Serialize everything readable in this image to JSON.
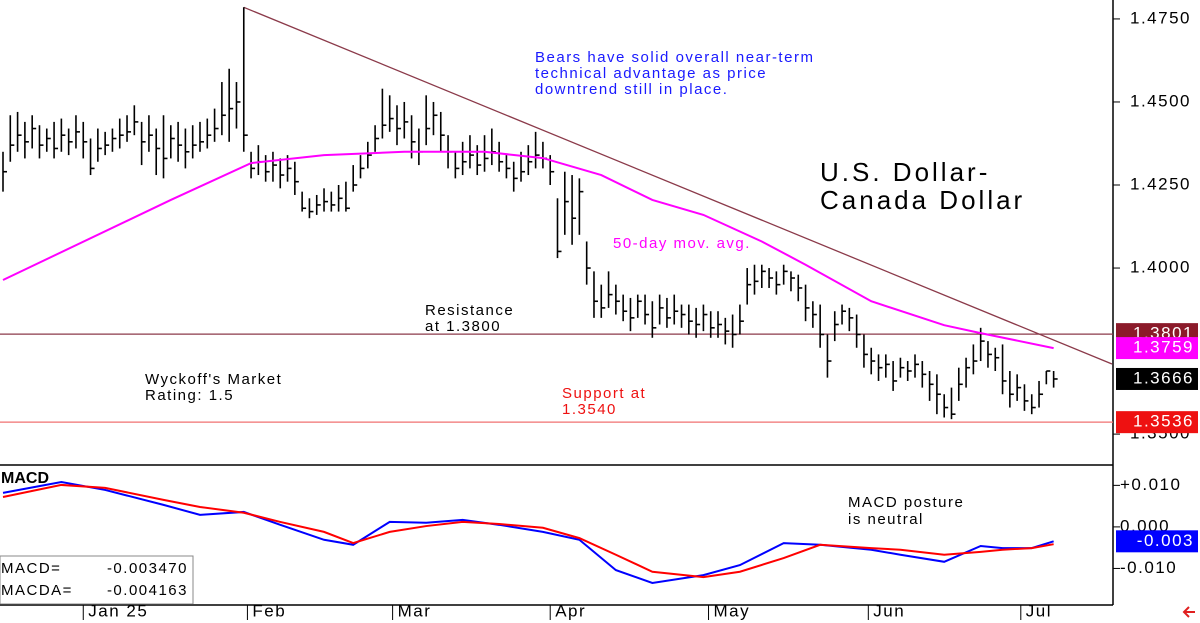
{
  "chart_data": [
    {
      "type": "ohlc",
      "title_lines": [
        "U.S. Dollar-",
        "Canada Dollar"
      ],
      "xlim": [
        0,
        152
      ],
      "ylim": [
        1.3407,
        1.4807
      ],
      "yticks": [
        {
          "value": 1.475,
          "label": "1.4750"
        },
        {
          "value": 1.45,
          "label": "1.4500"
        },
        {
          "value": 1.425,
          "label": "1.4250"
        },
        {
          "value": 1.4,
          "label": "1.4000"
        },
        {
          "value": 1.35,
          "label": "1.3500"
        }
      ],
      "color": "#000000",
      "close": [
        1.429,
        1.437,
        1.44,
        1.438,
        1.442,
        1.437,
        1.439,
        1.436,
        1.44,
        1.438,
        1.441,
        1.438,
        1.43,
        1.436,
        1.437,
        1.439,
        1.44,
        1.441,
        1.444,
        1.438,
        1.44,
        1.436,
        1.433,
        1.439,
        1.437,
        1.435,
        1.437,
        1.438,
        1.44,
        1.442,
        1.446,
        1.448,
        1.45,
        1.44,
        1.43,
        1.432,
        1.429,
        1.431,
        1.428,
        1.43,
        1.426,
        1.418,
        1.417,
        1.419,
        1.42,
        1.419,
        1.421,
        1.418,
        1.425,
        1.43,
        1.434,
        1.439,
        1.443,
        1.445,
        1.442,
        1.444,
        1.438,
        1.435,
        1.442,
        1.446,
        1.44,
        1.435,
        1.43,
        1.432,
        1.434,
        1.431,
        1.433,
        1.435,
        1.432,
        1.43,
        1.427,
        1.429,
        1.432,
        1.434,
        1.433,
        1.429,
        1.405,
        1.42,
        1.415,
        1.423,
        1.4,
        1.39,
        1.388,
        1.392,
        1.39,
        1.387,
        1.385,
        1.39,
        1.386,
        1.382,
        1.388,
        1.385,
        1.387,
        1.386,
        1.384,
        1.383,
        1.386,
        1.382,
        1.383,
        1.381,
        1.38,
        1.384,
        1.395,
        1.396,
        1.399,
        1.397,
        1.395,
        1.399,
        1.397,
        1.394,
        1.388,
        1.386,
        1.38,
        1.372,
        1.383,
        1.387,
        1.385,
        1.38,
        1.374,
        1.372,
        1.37,
        1.371,
        1.366,
        1.37,
        1.369,
        1.371,
        1.368,
        1.365,
        1.362,
        1.358,
        1.356,
        1.365,
        1.37,
        1.372,
        1.378,
        1.374,
        1.373,
        1.366,
        1.362,
        1.364,
        1.36,
        1.358,
        1.362,
        1.369,
        1.3666
      ],
      "high": [
        1.435,
        1.446,
        1.447,
        1.444,
        1.446,
        1.443,
        1.442,
        1.444,
        1.445,
        1.442,
        1.446,
        1.444,
        1.439,
        1.442,
        1.441,
        1.442,
        1.445,
        1.446,
        1.449,
        1.444,
        1.446,
        1.442,
        1.446,
        1.443,
        1.444,
        1.442,
        1.443,
        1.444,
        1.445,
        1.448,
        1.456,
        1.46,
        1.456,
        1.4785,
        1.435,
        1.437,
        1.434,
        1.435,
        1.433,
        1.434,
        1.432,
        1.423,
        1.421,
        1.422,
        1.424,
        1.423,
        1.425,
        1.426,
        1.431,
        1.434,
        1.438,
        1.443,
        1.454,
        1.452,
        1.449,
        1.45,
        1.446,
        1.442,
        1.452,
        1.45,
        1.447,
        1.44,
        1.435,
        1.438,
        1.44,
        1.437,
        1.44,
        1.442,
        1.438,
        1.434,
        1.432,
        1.435,
        1.437,
        1.441,
        1.438,
        1.434,
        1.421,
        1.429,
        1.428,
        1.427,
        1.408,
        1.399,
        1.395,
        1.399,
        1.395,
        1.392,
        1.391,
        1.392,
        1.392,
        1.39,
        1.392,
        1.391,
        1.392,
        1.389,
        1.389,
        1.388,
        1.389,
        1.387,
        1.387,
        1.385,
        1.386,
        1.389,
        1.4,
        1.401,
        1.401,
        1.4,
        1.399,
        1.401,
        1.399,
        1.398,
        1.395,
        1.39,
        1.389,
        1.38,
        1.387,
        1.389,
        1.388,
        1.386,
        1.38,
        1.376,
        1.374,
        1.374,
        1.372,
        1.373,
        1.372,
        1.374,
        1.372,
        1.369,
        1.368,
        1.362,
        1.364,
        1.37,
        1.373,
        1.377,
        1.382,
        1.378,
        1.376,
        1.377,
        1.369,
        1.368,
        1.365,
        1.362,
        1.366,
        1.369,
        1.369
      ],
      "low": [
        1.423,
        1.432,
        1.435,
        1.433,
        1.436,
        1.433,
        1.435,
        1.433,
        1.435,
        1.434,
        1.436,
        1.433,
        1.428,
        1.432,
        1.434,
        1.435,
        1.436,
        1.438,
        1.44,
        1.431,
        1.435,
        1.428,
        1.427,
        1.433,
        1.432,
        1.43,
        1.433,
        1.435,
        1.436,
        1.438,
        1.44,
        1.438,
        1.442,
        1.435,
        1.427,
        1.428,
        1.426,
        1.426,
        1.424,
        1.426,
        1.422,
        1.417,
        1.415,
        1.416,
        1.417,
        1.417,
        1.417,
        1.417,
        1.423,
        1.427,
        1.43,
        1.435,
        1.439,
        1.441,
        1.437,
        1.439,
        1.433,
        1.431,
        1.437,
        1.44,
        1.435,
        1.43,
        1.427,
        1.428,
        1.43,
        1.428,
        1.429,
        1.431,
        1.429,
        1.427,
        1.423,
        1.426,
        1.428,
        1.43,
        1.43,
        1.425,
        1.403,
        1.41,
        1.407,
        1.41,
        1.395,
        1.385,
        1.385,
        1.388,
        1.386,
        1.384,
        1.381,
        1.385,
        1.383,
        1.379,
        1.383,
        1.382,
        1.383,
        1.382,
        1.38,
        1.379,
        1.381,
        1.379,
        1.379,
        1.377,
        1.376,
        1.38,
        1.389,
        1.392,
        1.394,
        1.394,
        1.392,
        1.395,
        1.393,
        1.39,
        1.384,
        1.382,
        1.376,
        1.367,
        1.378,
        1.383,
        1.381,
        1.376,
        1.37,
        1.368,
        1.366,
        1.367,
        1.363,
        1.367,
        1.366,
        1.367,
        1.364,
        1.36,
        1.356,
        1.355,
        1.3545,
        1.36,
        1.364,
        1.368,
        1.372,
        1.37,
        1.369,
        1.362,
        1.358,
        1.36,
        1.357,
        1.356,
        1.358,
        1.365,
        1.364
      ],
      "series": [
        {
          "name": "50-day mov. avg.",
          "color": "#ff00ff",
          "x": [
            0,
            23,
            34,
            44,
            55,
            66,
            74,
            82,
            89,
            96,
            104,
            110,
            119,
            129,
            134,
            144
          ],
          "values": [
            1.3964,
            1.4205,
            1.4316,
            1.434,
            1.435,
            1.435,
            1.4331,
            1.428,
            1.4205,
            1.416,
            1.408,
            1.401,
            1.39,
            1.3828,
            1.3804,
            1.3759
          ]
        }
      ],
      "trendline": {
        "color": "#8b3a4a",
        "x": [
          33,
          152
        ],
        "values": [
          1.4785,
          1.3711
        ]
      },
      "hlines": [
        {
          "value": 1.3801,
          "color": "#8b3a4a"
        },
        {
          "value": 1.3536,
          "color": "#f07070"
        }
      ],
      "price_tags": [
        {
          "value": 1.3801,
          "color": "#8b1a2a"
        },
        {
          "value": 1.3759,
          "color": "#ff00ff"
        },
        {
          "value": 1.3666,
          "color": "#000000"
        },
        {
          "value": 1.3536,
          "color": "#ee1111"
        }
      ],
      "note": [
        "Bears have solid overall near-term",
        "technical advantage as price",
        "downtrend still in place."
      ],
      "resistance_note": [
        "Resistance",
        "at 1.3800"
      ],
      "rating_note": [
        "Wyckoff's Market",
        "Rating: 1.5"
      ],
      "support_note": [
        "Support at",
        "1.3540"
      ]
    },
    {
      "type": "line",
      "title": "MACD",
      "xlim": [
        0,
        152
      ],
      "xticks": [
        {
          "value": 11,
          "label": "Jan 25"
        },
        {
          "value": 33.5,
          "label": "Feb"
        },
        {
          "value": 53.4,
          "label": "Mar"
        },
        {
          "value": 75,
          "label": "Apr"
        },
        {
          "value": 96.7,
          "label": "May"
        },
        {
          "value": 118.6,
          "label": "Jun"
        },
        {
          "value": 139.5,
          "label": "Jul"
        }
      ],
      "ylim": [
        -0.0188,
        0.0149
      ],
      "yticks": [
        {
          "value": 0.01,
          "label": "+0.010"
        },
        {
          "value": 0,
          "label": "0.000"
        },
        {
          "value": -0.01,
          "label": "-0.010"
        }
      ],
      "series": [
        {
          "name": "MACD=",
          "color": "#0000ff",
          "x": [
            0,
            8,
            14,
            22,
            27,
            33,
            38,
            44,
            48,
            53,
            58,
            63,
            68,
            74,
            79,
            84,
            89,
            96,
            101,
            107,
            112,
            119,
            123,
            129,
            134,
            137,
            141,
            144
          ],
          "values": [
            0.0082,
            0.0108,
            0.0089,
            0.0053,
            0.0029,
            0.0036,
            0.0005,
            -0.0031,
            -0.0043,
            0.0012,
            0.001,
            0.0017,
            0.0005,
            -0.0012,
            -0.0031,
            -0.0104,
            -0.0135,
            -0.0116,
            -0.0092,
            -0.0039,
            -0.0043,
            -0.0055,
            -0.0067,
            -0.0084,
            -0.0046,
            -0.0051,
            -0.0051,
            -0.00347
          ],
          "readout": {
            "value": -0.00347,
            "label": "-0.003470"
          }
        },
        {
          "name": "MACDA=",
          "color": "#ff0000",
          "x": [
            0,
            8,
            14,
            22,
            27,
            33,
            38,
            44,
            48,
            53,
            58,
            63,
            68,
            74,
            79,
            84,
            89,
            96,
            101,
            107,
            112,
            119,
            123,
            129,
            134,
            137,
            141,
            144
          ],
          "values": [
            0.0072,
            0.0101,
            0.0094,
            0.0065,
            0.0048,
            0.0034,
            0.0012,
            -0.0012,
            -0.0039,
            -0.0012,
            0.0002,
            0.0012,
            0.0007,
            -0.0002,
            -0.0027,
            -0.0067,
            -0.0108,
            -0.0121,
            -0.0108,
            -0.0075,
            -0.0043,
            -0.0051,
            -0.0055,
            -0.0067,
            -0.006,
            -0.0055,
            -0.0051,
            -0.004163
          ],
          "readout": {
            "value": -0.004163,
            "label": "-0.004163"
          }
        }
      ],
      "tag": {
        "value": -0.00347,
        "label": "-0.003",
        "color": "#0000ff"
      },
      "note": [
        "MACD posture",
        "is neutral"
      ]
    }
  ]
}
